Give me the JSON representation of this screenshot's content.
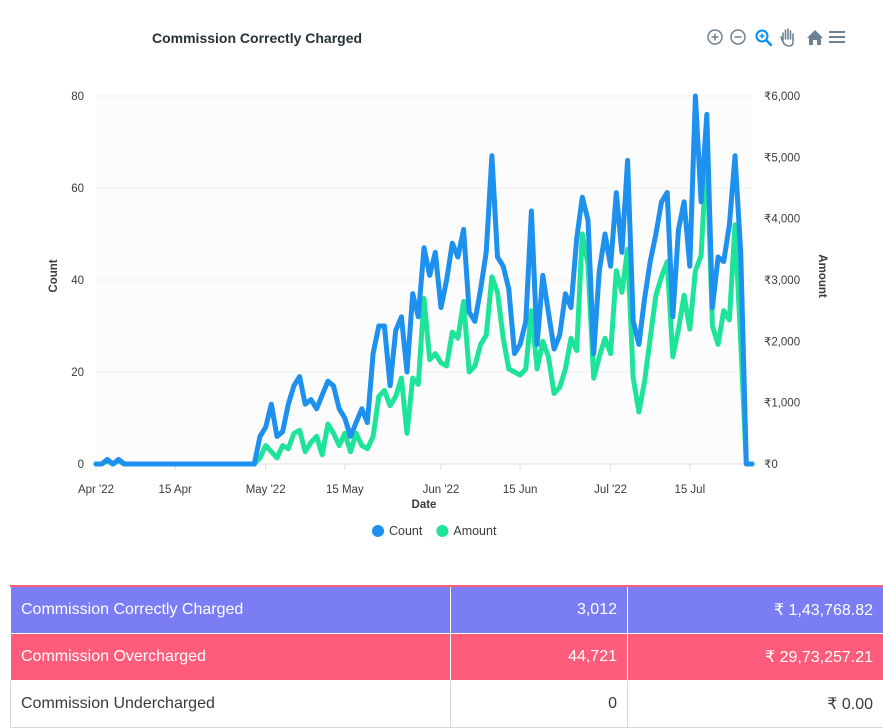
{
  "chart_data": {
    "type": "line",
    "title": "Commission Correctly Charged",
    "xlabel": "Date",
    "ylabel": "Count",
    "y2label": "Amount",
    "ylim": [
      0,
      80
    ],
    "y2lim": [
      0,
      6000
    ],
    "yticks": [
      "0",
      "20",
      "40",
      "60",
      "80"
    ],
    "y2ticks": [
      "₹0",
      "₹1,000",
      "₹2,000",
      "₹3,000",
      "₹4,000",
      "₹5,000",
      "₹6,000"
    ],
    "xrange": [
      "2022-04-01",
      "2022-07-26"
    ],
    "xticks": [
      {
        "date": "2022-04-01",
        "label": "Apr '22"
      },
      {
        "date": "2022-04-15",
        "label": "15 Apr"
      },
      {
        "date": "2022-05-01",
        "label": "May '22"
      },
      {
        "date": "2022-05-15",
        "label": "15 May"
      },
      {
        "date": "2022-06-01",
        "label": "Jun '22"
      },
      {
        "date": "2022-06-15",
        "label": "15 Jun"
      },
      {
        "date": "2022-07-01",
        "label": "Jul '22"
      },
      {
        "date": "2022-07-15",
        "label": "15 Jul"
      }
    ],
    "grid": true,
    "legend_position": "bottom",
    "series": [
      {
        "name": "Count",
        "axis": "left",
        "color": "#1e90ee",
        "points": [
          [
            "2022-04-01",
            0
          ],
          [
            "2022-04-02",
            0
          ],
          [
            "2022-04-03",
            1
          ],
          [
            "2022-04-04",
            0
          ],
          [
            "2022-04-05",
            1
          ],
          [
            "2022-04-06",
            0
          ],
          [
            "2022-04-07",
            0
          ],
          [
            "2022-04-10",
            0
          ],
          [
            "2022-04-20",
            0
          ],
          [
            "2022-04-29",
            0
          ],
          [
            "2022-04-30",
            6
          ],
          [
            "2022-05-01",
            8
          ],
          [
            "2022-05-02",
            13
          ],
          [
            "2022-05-03",
            6
          ],
          [
            "2022-05-04",
            7
          ],
          [
            "2022-05-05",
            13
          ],
          [
            "2022-05-06",
            17
          ],
          [
            "2022-05-07",
            19
          ],
          [
            "2022-05-08",
            13
          ],
          [
            "2022-05-09",
            14
          ],
          [
            "2022-05-10",
            12
          ],
          [
            "2022-05-11",
            15
          ],
          [
            "2022-05-12",
            18
          ],
          [
            "2022-05-13",
            17
          ],
          [
            "2022-05-14",
            12
          ],
          [
            "2022-05-15",
            10
          ],
          [
            "2022-05-16",
            6
          ],
          [
            "2022-05-17",
            9
          ],
          [
            "2022-05-18",
            12
          ],
          [
            "2022-05-19",
            9
          ],
          [
            "2022-05-20",
            24
          ],
          [
            "2022-05-21",
            30
          ],
          [
            "2022-05-22",
            30
          ],
          [
            "2022-05-23",
            17
          ],
          [
            "2022-05-24",
            29
          ],
          [
            "2022-05-25",
            32
          ],
          [
            "2022-05-26",
            20
          ],
          [
            "2022-05-27",
            37
          ],
          [
            "2022-05-28",
            32
          ],
          [
            "2022-05-29",
            47
          ],
          [
            "2022-05-30",
            41
          ],
          [
            "2022-05-31",
            46
          ],
          [
            "2022-06-01",
            34
          ],
          [
            "2022-06-02",
            40
          ],
          [
            "2022-06-03",
            48
          ],
          [
            "2022-06-04",
            45
          ],
          [
            "2022-06-05",
            51
          ],
          [
            "2022-06-06",
            33
          ],
          [
            "2022-06-07",
            31
          ],
          [
            "2022-06-08",
            38
          ],
          [
            "2022-06-09",
            46
          ],
          [
            "2022-06-10",
            67
          ],
          [
            "2022-06-11",
            45
          ],
          [
            "2022-06-12",
            43
          ],
          [
            "2022-06-13",
            38
          ],
          [
            "2022-06-14",
            24
          ],
          [
            "2022-06-15",
            26
          ],
          [
            "2022-06-16",
            31
          ],
          [
            "2022-06-17",
            55
          ],
          [
            "2022-06-18",
            26
          ],
          [
            "2022-06-19",
            41
          ],
          [
            "2022-06-20",
            33
          ],
          [
            "2022-06-21",
            25
          ],
          [
            "2022-06-22",
            28
          ],
          [
            "2022-06-23",
            37
          ],
          [
            "2022-06-24",
            34
          ],
          [
            "2022-06-25",
            49
          ],
          [
            "2022-06-26",
            58
          ],
          [
            "2022-06-27",
            53
          ],
          [
            "2022-06-28",
            24
          ],
          [
            "2022-06-29",
            42
          ],
          [
            "2022-06-30",
            50
          ],
          [
            "2022-07-01",
            43
          ],
          [
            "2022-07-02",
            59
          ],
          [
            "2022-07-03",
            46
          ],
          [
            "2022-07-04",
            66
          ],
          [
            "2022-07-05",
            31
          ],
          [
            "2022-07-06",
            26
          ],
          [
            "2022-07-07",
            36
          ],
          [
            "2022-07-08",
            44
          ],
          [
            "2022-07-09",
            50
          ],
          [
            "2022-07-10",
            57
          ],
          [
            "2022-07-11",
            59
          ],
          [
            "2022-07-12",
            32
          ],
          [
            "2022-07-13",
            51
          ],
          [
            "2022-07-14",
            57
          ],
          [
            "2022-07-15",
            43
          ],
          [
            "2022-07-16",
            80
          ],
          [
            "2022-07-17",
            57
          ],
          [
            "2022-07-18",
            76
          ],
          [
            "2022-07-19",
            34
          ],
          [
            "2022-07-20",
            45
          ],
          [
            "2022-07-21",
            44
          ],
          [
            "2022-07-22",
            52
          ],
          [
            "2022-07-23",
            67
          ],
          [
            "2022-07-24",
            46
          ],
          [
            "2022-07-25",
            0
          ],
          [
            "2022-07-26",
            0
          ]
        ]
      },
      {
        "name": "Amount",
        "axis": "right",
        "color": "#1ee49a",
        "points": [
          [
            "2022-04-01",
            0
          ],
          [
            "2022-04-02",
            0
          ],
          [
            "2022-04-03",
            50
          ],
          [
            "2022-04-04",
            0
          ],
          [
            "2022-04-05",
            50
          ],
          [
            "2022-04-06",
            0
          ],
          [
            "2022-04-07",
            0
          ],
          [
            "2022-04-10",
            0
          ],
          [
            "2022-04-20",
            0
          ],
          [
            "2022-04-29",
            0
          ],
          [
            "2022-04-30",
            100
          ],
          [
            "2022-05-01",
            300
          ],
          [
            "2022-05-02",
            200
          ],
          [
            "2022-05-03",
            100
          ],
          [
            "2022-05-04",
            300
          ],
          [
            "2022-05-05",
            250
          ],
          [
            "2022-05-06",
            500
          ],
          [
            "2022-05-07",
            550
          ],
          [
            "2022-05-08",
            200
          ],
          [
            "2022-05-09",
            350
          ],
          [
            "2022-05-10",
            450
          ],
          [
            "2022-05-11",
            150
          ],
          [
            "2022-05-12",
            650
          ],
          [
            "2022-05-13",
            500
          ],
          [
            "2022-05-14",
            300
          ],
          [
            "2022-05-15",
            500
          ],
          [
            "2022-05-16",
            200
          ],
          [
            "2022-05-17",
            500
          ],
          [
            "2022-05-18",
            300
          ],
          [
            "2022-05-19",
            250
          ],
          [
            "2022-05-20",
            450
          ],
          [
            "2022-05-21",
            1100
          ],
          [
            "2022-05-22",
            1200
          ],
          [
            "2022-05-23",
            950
          ],
          [
            "2022-05-24",
            1100
          ],
          [
            "2022-05-25",
            1400
          ],
          [
            "2022-05-26",
            500
          ],
          [
            "2022-05-27",
            1400
          ],
          [
            "2022-05-28",
            1300
          ],
          [
            "2022-05-29",
            2700
          ],
          [
            "2022-05-30",
            1700
          ],
          [
            "2022-05-31",
            1800
          ],
          [
            "2022-06-01",
            1650
          ],
          [
            "2022-06-02",
            1600
          ],
          [
            "2022-06-03",
            2150
          ],
          [
            "2022-06-04",
            2050
          ],
          [
            "2022-06-05",
            2650
          ],
          [
            "2022-06-06",
            1500
          ],
          [
            "2022-06-07",
            1600
          ],
          [
            "2022-06-08",
            1950
          ],
          [
            "2022-06-09",
            2100
          ],
          [
            "2022-06-10",
            3050
          ],
          [
            "2022-06-11",
            2800
          ],
          [
            "2022-06-12",
            2050
          ],
          [
            "2022-06-13",
            1550
          ],
          [
            "2022-06-14",
            1500
          ],
          [
            "2022-06-15",
            1450
          ],
          [
            "2022-06-16",
            1550
          ],
          [
            "2022-06-17",
            2500
          ],
          [
            "2022-06-18",
            1550
          ],
          [
            "2022-06-19",
            2000
          ],
          [
            "2022-06-20",
            1750
          ],
          [
            "2022-06-21",
            1150
          ],
          [
            "2022-06-22",
            1250
          ],
          [
            "2022-06-23",
            1550
          ],
          [
            "2022-06-24",
            2050
          ],
          [
            "2022-06-25",
            1850
          ],
          [
            "2022-06-26",
            3750
          ],
          [
            "2022-06-27",
            3250
          ],
          [
            "2022-06-28",
            1400
          ],
          [
            "2022-06-29",
            1750
          ],
          [
            "2022-06-30",
            2050
          ],
          [
            "2022-07-01",
            1800
          ],
          [
            "2022-07-02",
            3150
          ],
          [
            "2022-07-03",
            2800
          ],
          [
            "2022-07-04",
            3500
          ],
          [
            "2022-07-05",
            1400
          ],
          [
            "2022-07-06",
            850
          ],
          [
            "2022-07-07",
            1350
          ],
          [
            "2022-07-08",
            2050
          ],
          [
            "2022-07-09",
            2750
          ],
          [
            "2022-07-10",
            3050
          ],
          [
            "2022-07-11",
            3300
          ],
          [
            "2022-07-12",
            1750
          ],
          [
            "2022-07-13",
            2200
          ],
          [
            "2022-07-14",
            2750
          ],
          [
            "2022-07-15",
            2200
          ],
          [
            "2022-07-16",
            3150
          ],
          [
            "2022-07-17",
            3400
          ],
          [
            "2022-07-18",
            5150
          ],
          [
            "2022-07-19",
            2250
          ],
          [
            "2022-07-20",
            1950
          ],
          [
            "2022-07-21",
            2500
          ],
          [
            "2022-07-22",
            2350
          ],
          [
            "2022-07-23",
            3900
          ],
          [
            "2022-07-24",
            2000
          ],
          [
            "2022-07-25",
            0
          ],
          [
            "2022-07-26",
            0
          ]
        ]
      }
    ]
  },
  "toolbar": {
    "icons": [
      "zoom-in-icon",
      "zoom-out-icon",
      "selection-zoom-icon",
      "pan-hand-icon",
      "reset-home-icon",
      "menu-icon"
    ],
    "active_icon": "selection-zoom-icon",
    "active_color": "#008ffb",
    "icon_color": "#6e8192"
  },
  "summary_table": {
    "rows": [
      {
        "label": "Commission Correctly Charged",
        "count": "3,012",
        "amount": "₹ 1,43,768.82",
        "color": "#7b7df5"
      },
      {
        "label": "Commission Overcharged",
        "count": "44,721",
        "amount": "₹ 29,73,257.21",
        "color": "#ff5c7c"
      },
      {
        "label": "Commission Undercharged",
        "count": "0",
        "amount": "₹ 0.00",
        "color": "#ffffff"
      }
    ]
  }
}
